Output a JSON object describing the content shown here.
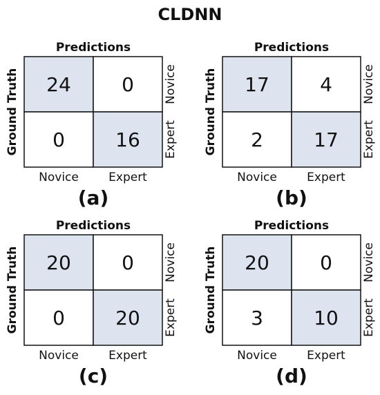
{
  "title": "CLDNN",
  "panels": [
    {
      "x_label": "Predictions",
      "y_label": "Ground Truth",
      "columns": [
        "Novice",
        "Expert"
      ],
      "rows": [
        "Novice",
        "Expert"
      ],
      "cells": [
        [
          24,
          0
        ],
        [
          0,
          16
        ]
      ],
      "caption": "(a)"
    },
    {
      "x_label": "Predictions",
      "y_label": "Ground Truth",
      "columns": [
        "Novice",
        "Expert"
      ],
      "rows": [
        "Novice",
        "Expert"
      ],
      "cells": [
        [
          17,
          4
        ],
        [
          2,
          17
        ]
      ],
      "caption": "(b)"
    },
    {
      "x_label": "Predictions",
      "y_label": "Ground Truth",
      "columns": [
        "Novice",
        "Expert"
      ],
      "rows": [
        "Novice",
        "Expert"
      ],
      "cells": [
        [
          20,
          0
        ],
        [
          0,
          20
        ]
      ],
      "caption": "(c)"
    },
    {
      "x_label": "Predictions",
      "y_label": "Ground Truth",
      "columns": [
        "Novice",
        "Expert"
      ],
      "rows": [
        "Novice",
        "Expert"
      ],
      "cells": [
        [
          20,
          0
        ],
        [
          3,
          10
        ]
      ],
      "caption": "(d)"
    }
  ]
}
